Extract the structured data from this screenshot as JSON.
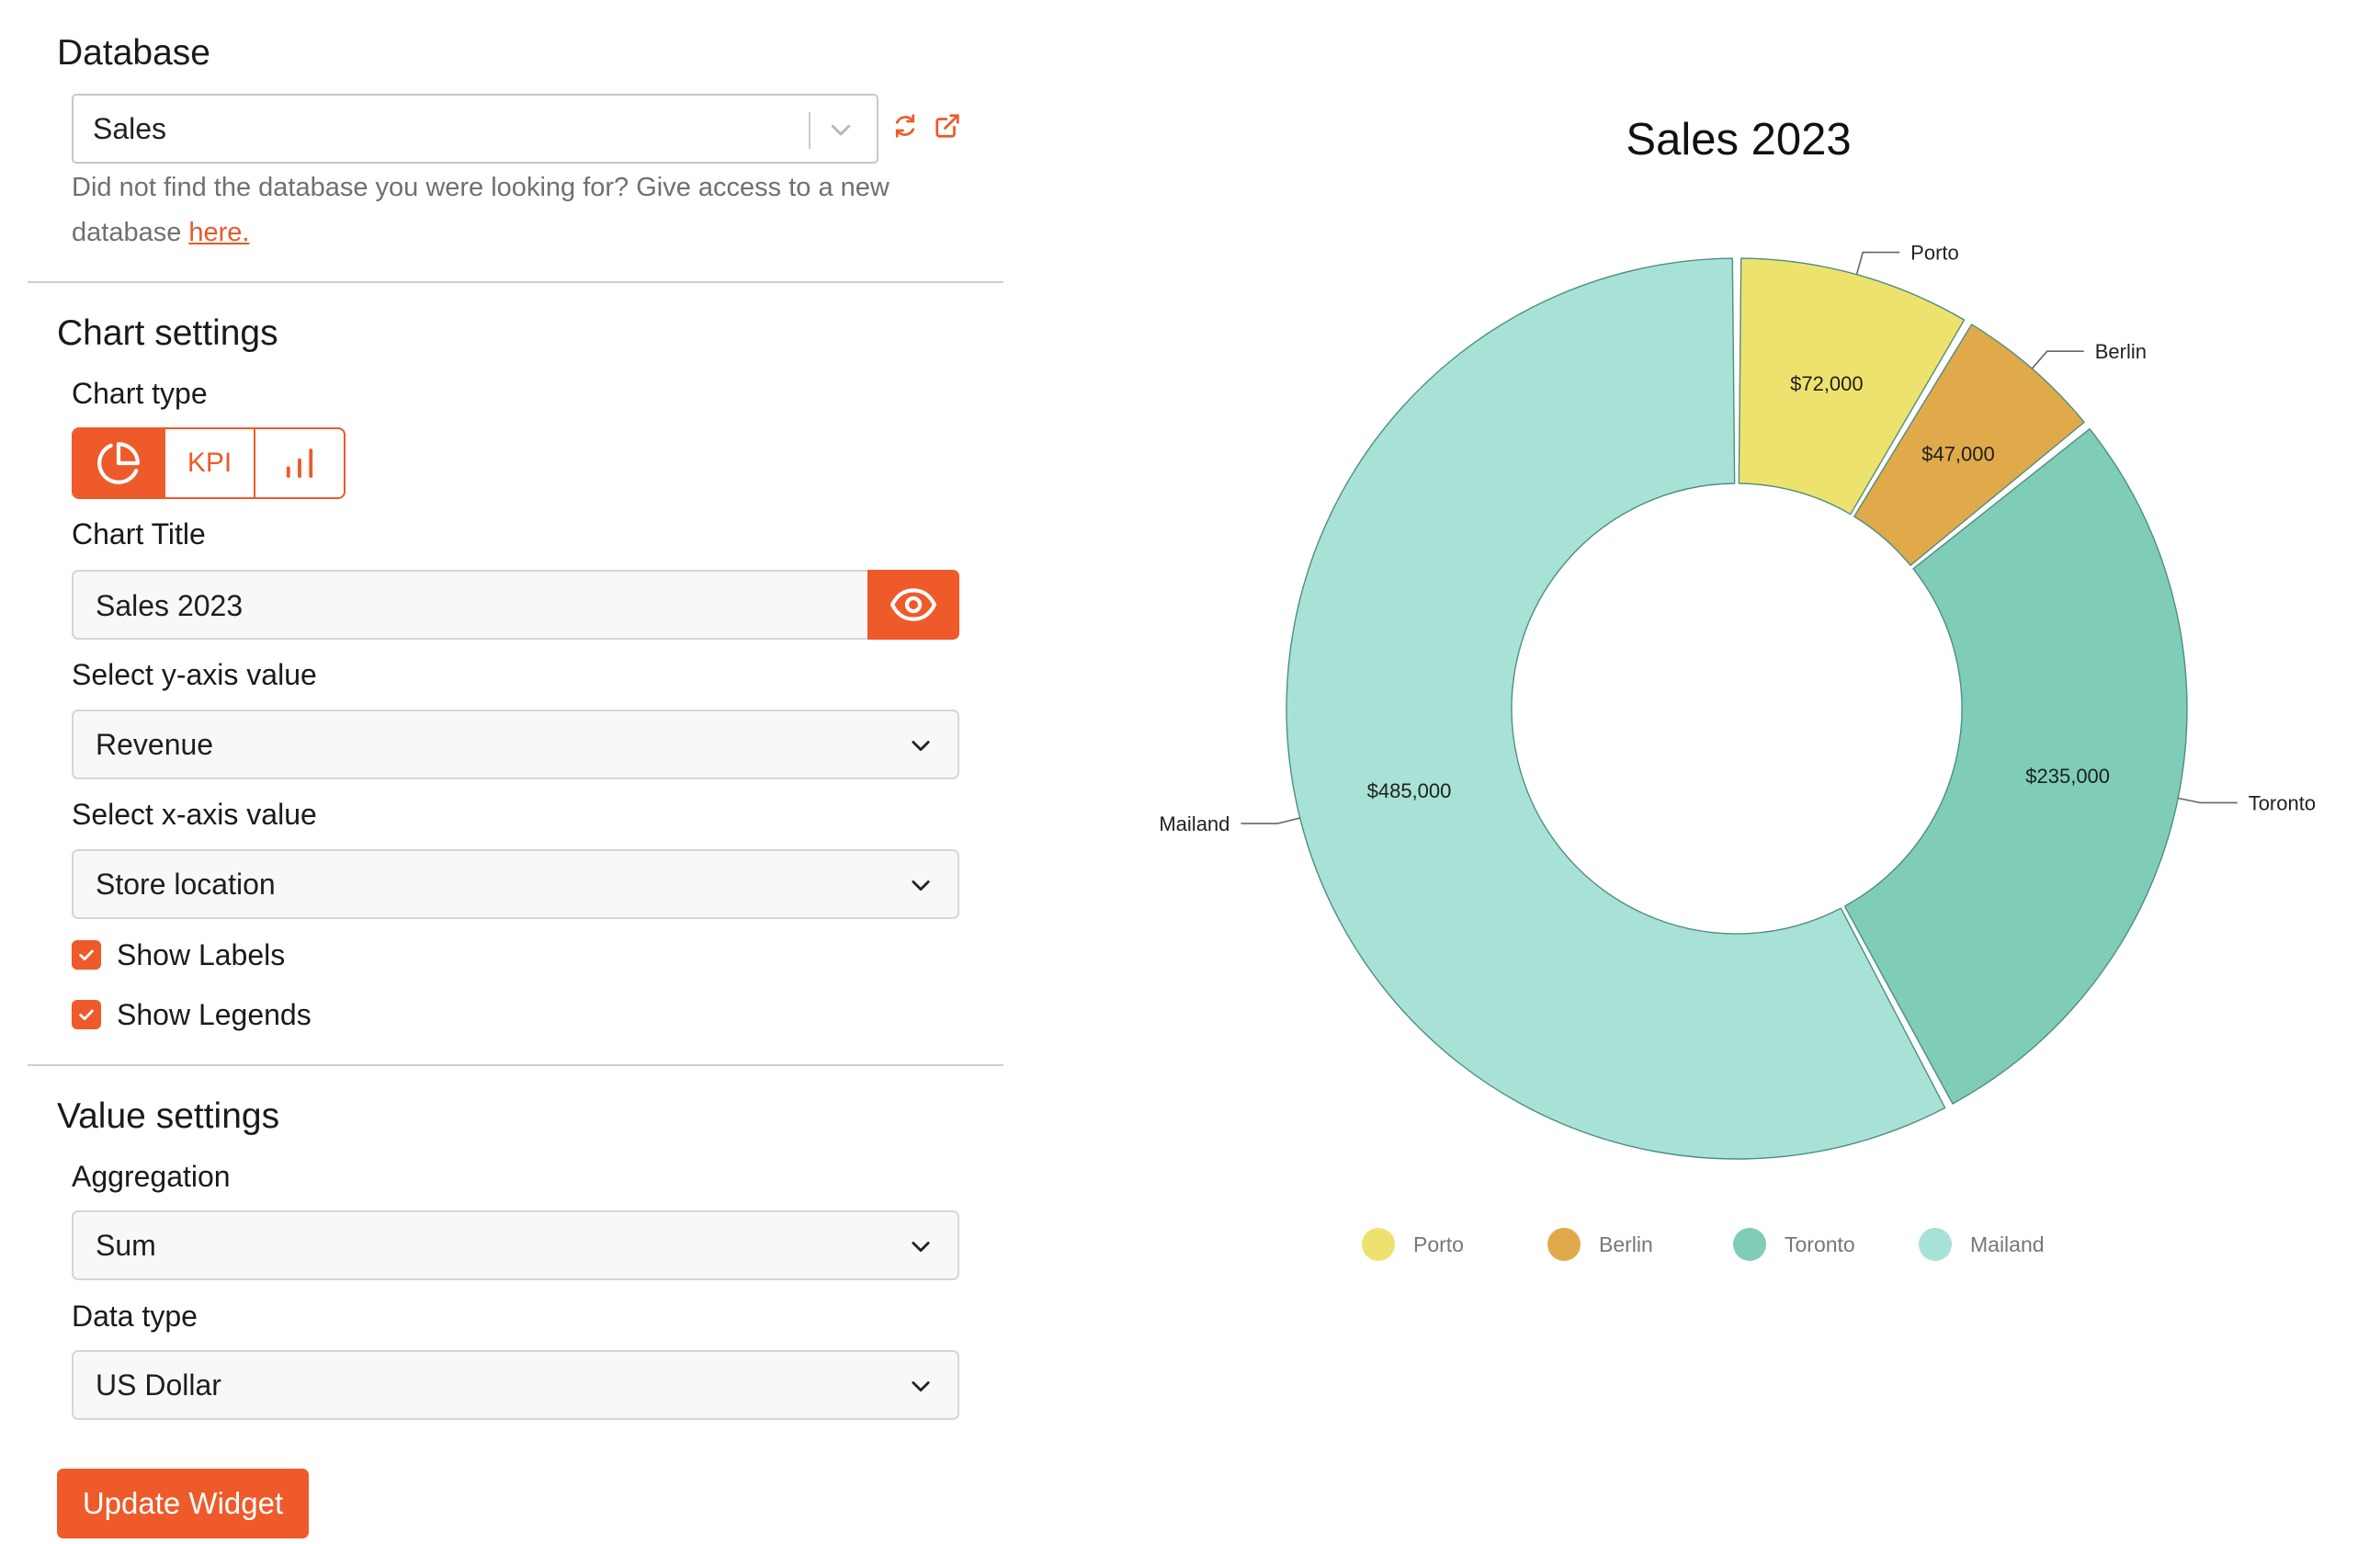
{
  "database": {
    "label": "Database",
    "selected": "Sales",
    "help_text": "Did not find the database you were looking for? Give access to a new database",
    "help_link": "here."
  },
  "chart_settings": {
    "heading": "Chart settings",
    "chart_type_label": "Chart type",
    "chart_types": [
      {
        "name": "pie",
        "icon": "pie-chart-icon",
        "active": true
      },
      {
        "name": "kpi",
        "label": "KPI",
        "active": false
      },
      {
        "name": "bar",
        "icon": "bar-chart-icon",
        "active": false
      }
    ],
    "title_label": "Chart Title",
    "title_value": "Sales 2023",
    "y_axis_label": "Select y-axis value",
    "y_axis_value": "Revenue",
    "x_axis_label": "Select x-axis value",
    "x_axis_value": "Store location",
    "show_labels": {
      "label": "Show Labels",
      "checked": true
    },
    "show_legends": {
      "label": "Show Legends",
      "checked": true
    }
  },
  "value_settings": {
    "heading": "Value settings",
    "aggregation_label": "Aggregation",
    "aggregation_value": "Sum",
    "data_type_label": "Data type",
    "data_type_value": "US Dollar"
  },
  "update_button": "Update Widget",
  "colors": {
    "accent": "#EE5A2A",
    "porto": "#EDE26E",
    "berlin": "#E0AA4A",
    "toronto": "#7FCDB8",
    "mailand": "#A8E2D6"
  },
  "chart_data": {
    "type": "pie",
    "variant": "donut",
    "title": "Sales 2023",
    "categories": [
      "Porto",
      "Berlin",
      "Toronto",
      "Mailand"
    ],
    "values": [
      72000,
      47000,
      235000,
      485000
    ],
    "value_labels": [
      "$72,000",
      "$47,000",
      "$235,000",
      "$485,000"
    ],
    "legend": "bottom",
    "show_labels": true
  }
}
